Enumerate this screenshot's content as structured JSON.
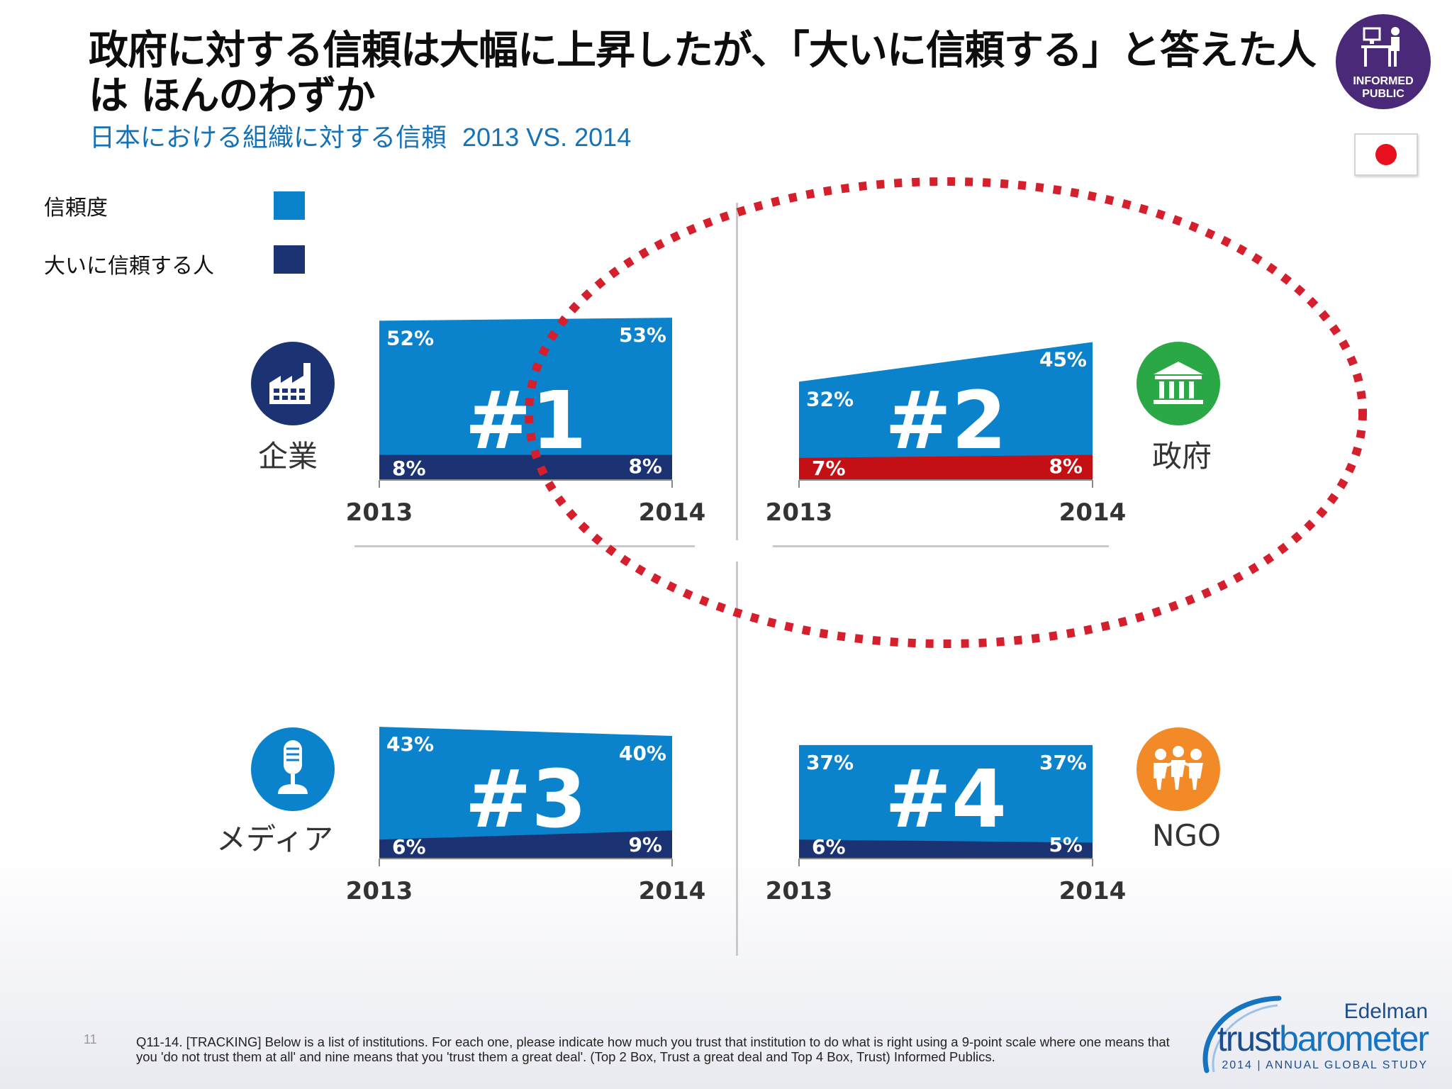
{
  "title": "政府に対する信頼は大幅に上昇したが、「大いに信頼する」と答えた人は ほんのわずか",
  "subtitle": "日本における組織に対する信頼",
  "subtitle_years": "2013 VS. 2014",
  "badge": {
    "line1": "INFORMED",
    "line2": "PUBLIC",
    "icon": "person-at-desk-icon"
  },
  "flag": "japan-flag",
  "legend": [
    {
      "label": "信頼度",
      "color": "#0a82cc"
    },
    {
      "label": "大いに信頼する人",
      "color": "#1b3372"
    }
  ],
  "colors": {
    "trust": "#0a82cc",
    "great_deal": "#1b3372",
    "highlight": "#c40f15",
    "circle": "#d61f2c"
  },
  "chart_data": [
    {
      "type": "area",
      "institution": "企業",
      "rank_label": "#1",
      "icon": "factory-icon",
      "icon_color": "#1b3372",
      "x": [
        "2013",
        "2014"
      ],
      "series": [
        {
          "name": "信頼度",
          "values": [
            52,
            53
          ],
          "labels": [
            "52%",
            "53%"
          ]
        },
        {
          "name": "大いに信頼する人",
          "values": [
            8,
            8
          ],
          "labels": [
            "8%",
            "8%"
          ]
        }
      ]
    },
    {
      "type": "area",
      "institution": "政府",
      "rank_label": "#2",
      "icon": "government-building-icon",
      "icon_color": "#2aa845",
      "highlighted": true,
      "x": [
        "2013",
        "2014"
      ],
      "series": [
        {
          "name": "信頼度",
          "values": [
            32,
            45
          ],
          "labels": [
            "32%",
            "45%"
          ]
        },
        {
          "name": "大いに信頼する人",
          "values": [
            7,
            8
          ],
          "labels": [
            "7%",
            "8%"
          ]
        }
      ]
    },
    {
      "type": "area",
      "institution": "メディア",
      "rank_label": "#3",
      "icon": "microphone-icon",
      "icon_color": "#0a82cc",
      "x": [
        "2013",
        "2014"
      ],
      "series": [
        {
          "name": "信頼度",
          "values": [
            43,
            40
          ],
          "labels": [
            "43%",
            "40%"
          ]
        },
        {
          "name": "大いに信頼する人",
          "values": [
            6,
            9
          ],
          "labels": [
            "6%",
            "9%"
          ]
        }
      ]
    },
    {
      "type": "area",
      "institution": "NGO",
      "rank_label": "#4",
      "icon": "people-group-icon",
      "icon_color": "#f28a28",
      "x": [
        "2013",
        "2014"
      ],
      "series": [
        {
          "name": "信頼度",
          "values": [
            37,
            37
          ],
          "labels": [
            "37%",
            "37%"
          ]
        },
        {
          "name": "大いに信頼する人",
          "values": [
            6,
            5
          ],
          "labels": [
            "6%",
            "5%"
          ]
        }
      ]
    }
  ],
  "page_number": "11",
  "footnote": "Q11-14. [TRACKING] Below is a list of institutions. For each one, please indicate how much you trust that institution to do what is right using a 9-point scale where one means that you 'do not trust them at all' and nine means that you 'trust them a great deal'. (Top 2 Box, Trust a great deal and Top 4 Box, Trust) Informed Publics.",
  "logo": {
    "brand": "Edelman",
    "name_a": "trust",
    "name_b": "barometer",
    "year": "2014",
    "tagline": "ANNUAL GLOBAL STUDY"
  }
}
